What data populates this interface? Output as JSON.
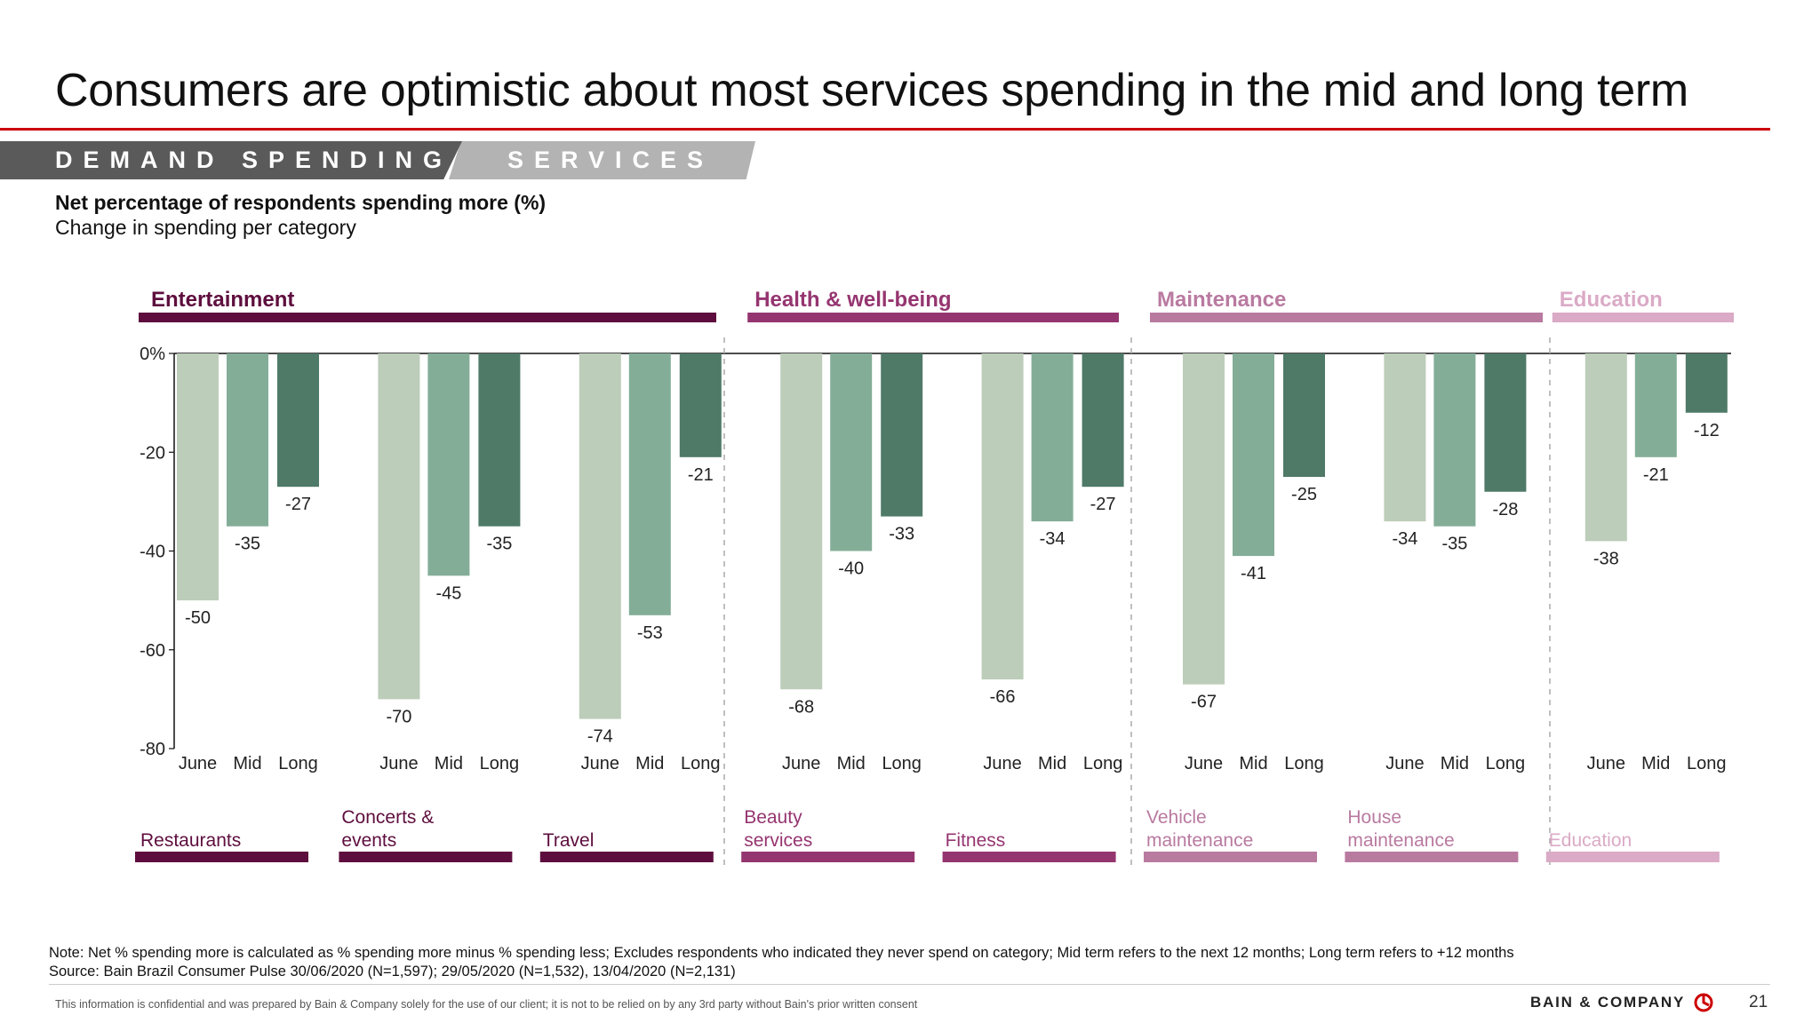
{
  "slide": {
    "title": "Consumers are optimistic about most services spending in the mid and long term",
    "tabs": [
      "DEMAND SPENDING",
      "SERVICES"
    ],
    "subtitle": "Net percentage of respondents spending more (%)",
    "subtitle2": "Change in spending per category",
    "note": "Note: Net % spending more is calculated as % spending more minus % spending less; Excludes respondents who indicated they never spend on category; Mid term refers to the next 12 months; Long term refers to +12 months",
    "source": "Source: Bain Brazil Consumer Pulse 30/06/2020 (N=1,597); 29/05/2020 (N=1,532), 13/04/2020 (N=2,131)",
    "confidential": "This information is confidential and was prepared by Bain & Company solely for the use of our client; it is not to be relied on by any 3rd party without Bain's prior written consent",
    "logo": "BAIN & COMPANY",
    "page_number": "21"
  },
  "chart_data": {
    "type": "bar",
    "ylim": [
      -80,
      0
    ],
    "yticks": [
      0,
      -20,
      -40,
      -60,
      -80
    ],
    "ytick_labels": [
      "0%",
      "-20",
      "-40",
      "-60",
      "-80"
    ],
    "bar_labels": [
      "June",
      "Mid",
      "Long"
    ],
    "bar_colors": [
      "#bccdb9",
      "#83ad97",
      "#4e7a67"
    ],
    "groups": [
      {
        "name": "Entertainment",
        "color": "#5e0e3e",
        "categories": [
          {
            "label": [
              "Restaurants"
            ],
            "values": [
              -50,
              -35,
              -27
            ]
          },
          {
            "label": [
              "Concerts &",
              "events"
            ],
            "values": [
              -70,
              -45,
              -35
            ]
          },
          {
            "label": [
              "Travel"
            ],
            "values": [
              -74,
              -53,
              -21
            ]
          }
        ]
      },
      {
        "name": "Health & well-being",
        "color": "#953570",
        "categories": [
          {
            "label": [
              "Beauty",
              "services"
            ],
            "values": [
              -68,
              -40,
              -33
            ]
          },
          {
            "label": [
              "Fitness"
            ],
            "values": [
              -66,
              -34,
              -27
            ]
          }
        ]
      },
      {
        "name": "Maintenance",
        "color": "#b97aa0",
        "categories": [
          {
            "label": [
              "Vehicle",
              "maintenance"
            ],
            "values": [
              -67,
              -41,
              -25
            ]
          },
          {
            "label": [
              "House",
              "maintenance"
            ],
            "values": [
              -34,
              -35,
              -28
            ]
          }
        ]
      },
      {
        "name": "Education",
        "color": "#daaac6",
        "categories": [
          {
            "label": [
              "Education"
            ],
            "values": [
              -38,
              -21,
              -12
            ]
          }
        ]
      }
    ]
  }
}
